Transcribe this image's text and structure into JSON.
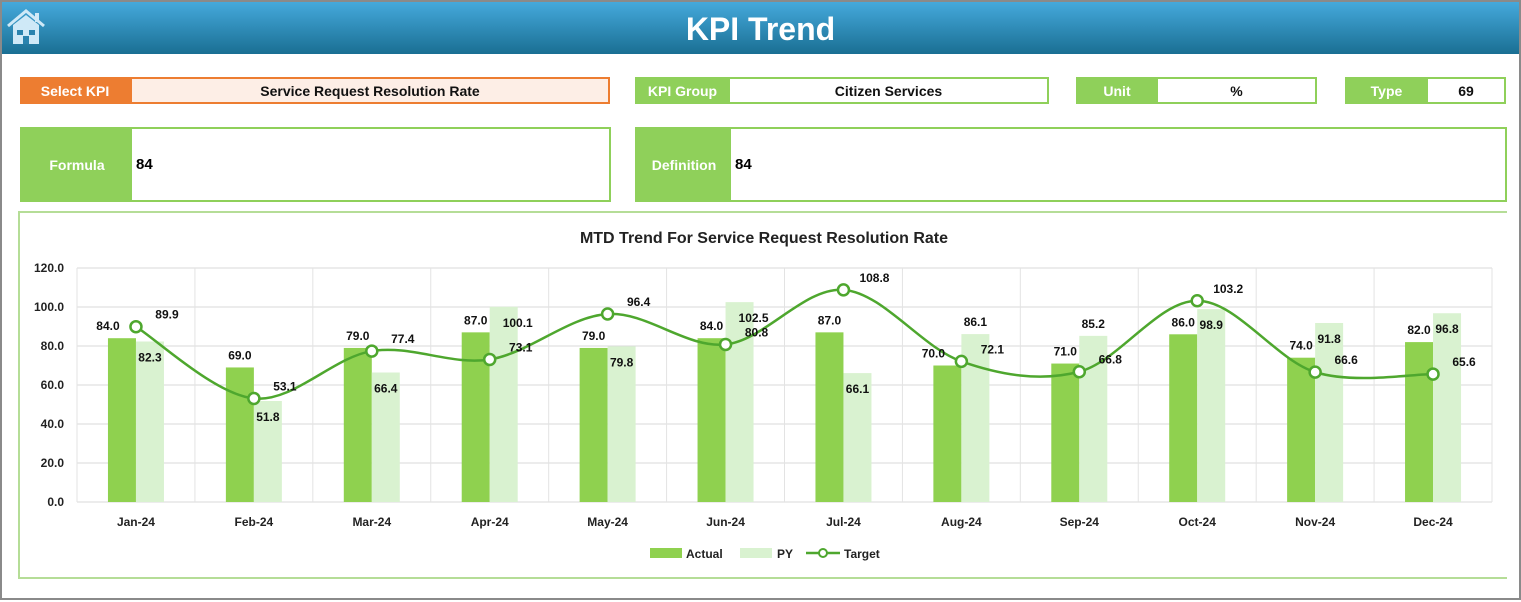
{
  "header": {
    "title": "KPI Trend",
    "icon": "home-icon"
  },
  "fields": {
    "select_kpi_label": "Select KPI",
    "select_kpi_value": "Service Request Resolution Rate",
    "kpi_group_label": "KPI Group",
    "kpi_group_value": "Citizen Services",
    "unit_label": "Unit",
    "unit_value": "%",
    "type_label": "Type",
    "type_value": "69",
    "formula_label": "Formula",
    "formula_value": "84",
    "definition_label": "Definition",
    "definition_value": "84"
  },
  "colors": {
    "actual": "#8fd14f",
    "py": "#d9f2d0",
    "target": "#4ea72e",
    "accent": "#ed7d31"
  },
  "chart_data": {
    "type": "bar",
    "title": "MTD Trend For Service Request Resolution Rate",
    "categories": [
      "Jan-24",
      "Feb-24",
      "Mar-24",
      "Apr-24",
      "May-24",
      "Jun-24",
      "Jul-24",
      "Aug-24",
      "Sep-24",
      "Oct-24",
      "Nov-24",
      "Dec-24"
    ],
    "ylim": [
      0,
      120
    ],
    "yticks": [
      "0.0",
      "20.0",
      "40.0",
      "60.0",
      "80.0",
      "100.0",
      "120.0"
    ],
    "grid": true,
    "legend": "bottom",
    "series": [
      {
        "name": "Actual",
        "type": "bar",
        "values": [
          84.0,
          69.0,
          79.0,
          87.0,
          79.0,
          84.0,
          87.0,
          70.0,
          71.0,
          86.0,
          74.0,
          82.0
        ]
      },
      {
        "name": "PY",
        "type": "bar",
        "values": [
          82.3,
          51.8,
          66.4,
          100.1,
          79.8,
          102.5,
          66.1,
          86.1,
          85.2,
          98.9,
          91.8,
          96.8
        ]
      },
      {
        "name": "Target",
        "type": "line",
        "values": [
          89.9,
          53.1,
          77.4,
          73.1,
          96.4,
          80.8,
          108.8,
          72.1,
          66.8,
          103.2,
          66.6,
          65.6
        ]
      }
    ]
  }
}
